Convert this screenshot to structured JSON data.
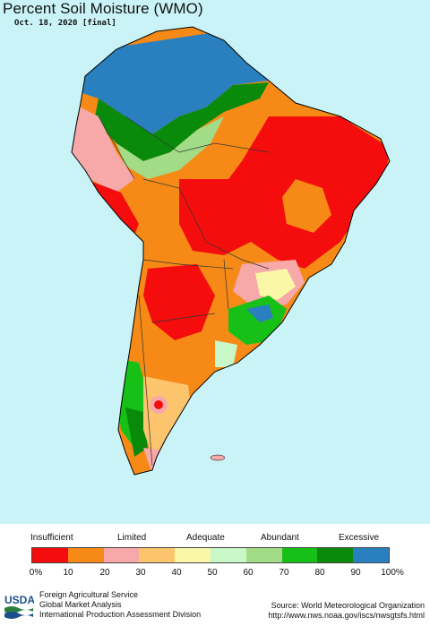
{
  "title": "Percent Soil Moisture (WMO)",
  "date": "Oct. 18, 2020 [final]",
  "legend": {
    "categories": [
      "Insufficient",
      "Limited",
      "Adequate",
      "Abundant",
      "Excessive"
    ],
    "ticks": [
      "0%",
      "10",
      "20",
      "30",
      "40",
      "50",
      "60",
      "70",
      "80",
      "90",
      "100%"
    ],
    "colors": [
      "#f50d0d",
      "#f78a16",
      "#f7a8a8",
      "#fbc46d",
      "#fbf7a8",
      "#c8f7c8",
      "#a2dc86",
      "#16c016",
      "#0a8a0a",
      "#2a7fbf"
    ]
  },
  "footer": {
    "logo_text": "USDA",
    "agency_lines": [
      "Foreign Agricultural Service",
      "Global Market Analysis",
      "International Production Assessment Division"
    ],
    "source_lines": [
      "Source: World Meteorological Organization",
      "http://www.nws.noaa.gov/iscs/nwsgtsfs.html"
    ]
  }
}
